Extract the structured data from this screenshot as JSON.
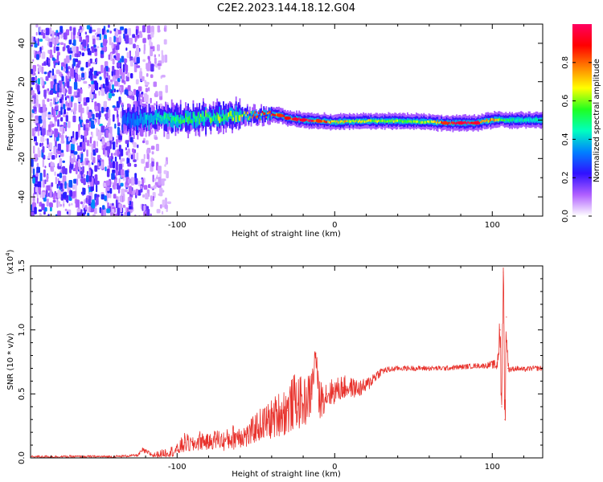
{
  "title": "C2E2.2023.144.18.12.G04",
  "chart_data": [
    {
      "type": "heatmap",
      "xlabel": "Height of straight line (km)",
      "ylabel": "Frequency (Hz)",
      "xlim": [
        -193,
        132
      ],
      "ylim": [
        -50,
        50
      ],
      "xticks": [
        -100,
        0,
        100
      ],
      "yticks": [
        -40,
        -20,
        0,
        20,
        40
      ],
      "colorbar": {
        "label": "Normalized spectral amplitude",
        "range": [
          0,
          1
        ],
        "ticks": [
          "0.0",
          "0.2",
          "0.4",
          "0.6",
          "0.8"
        ],
        "tick_values": [
          0,
          0.2,
          0.4,
          0.6,
          0.8
        ],
        "colors": [
          "#ffffff",
          "#b060ff",
          "#3010ff",
          "#0080ff",
          "#00ffc0",
          "#20ff20",
          "#ffff00",
          "#ff8000",
          "#ff0000",
          "#ff0060"
        ]
      },
      "ridge": {
        "x": [
          -130,
          -110,
          -100,
          -80,
          -60,
          -50,
          -40,
          -35,
          -30,
          -25,
          -20,
          -10,
          0,
          20,
          40,
          60,
          70,
          80,
          90,
          95,
          100,
          105,
          108,
          115,
          132
        ],
        "freq": [
          0,
          1,
          0.5,
          1.5,
          2.5,
          2,
          3,
          2.5,
          1,
          0.5,
          0,
          -0.5,
          -1,
          -0.5,
          -0.5,
          -1,
          -1.5,
          -1.5,
          -1.5,
          -0.5,
          0,
          0.5,
          0,
          0,
          0
        ],
        "amplitude": [
          0.3,
          0.45,
          0.5,
          0.55,
          0.6,
          0.75,
          0.8,
          0.85,
          0.9,
          0.95,
          0.95,
          0.85,
          0.7,
          0.65,
          0.6,
          0.6,
          0.85,
          0.95,
          0.95,
          0.7,
          0.8,
          0.6,
          0.5,
          0.45,
          0.45
        ]
      },
      "noise_region": {
        "x_range": [
          -193,
          -110
        ],
        "amplitude": 0.25
      }
    },
    {
      "type": "line",
      "xlabel": "Height of straight line (km)",
      "ylabel": "SNR (10 * v/v)",
      "scale_label": "(x10",
      "scale_exponent": "4",
      "scale_suffix": ")",
      "xlim": [
        -193,
        132
      ],
      "ylim": [
        0,
        1.5
      ],
      "xticks": [
        -100,
        0,
        100
      ],
      "yticks": [
        0,
        0.5,
        1.0,
        1.5
      ],
      "ytick_labels": [
        "0.0",
        "0.5",
        "1.0",
        "1.5"
      ],
      "color": "#e8322c",
      "series": [
        {
          "x": [
            -193,
            -170,
            -140,
            -125,
            -122,
            -115,
            -100,
            -95,
            -90,
            -85,
            -80,
            -75,
            -70,
            -65,
            -60,
            -55,
            -50,
            -45,
            -40,
            -35,
            -30,
            -25,
            -20,
            -15,
            -12,
            -10,
            -5,
            0,
            5,
            10,
            15,
            20,
            25,
            30,
            40,
            50,
            60,
            70,
            80,
            90,
            95,
            100,
            103,
            105,
            106,
            107,
            108,
            109,
            110,
            112,
            115,
            120,
            125,
            132
          ],
          "y": [
            0.01,
            0.01,
            0.01,
            0.02,
            0.06,
            0.02,
            0.06,
            0.12,
            0.1,
            0.14,
            0.12,
            0.15,
            0.13,
            0.16,
            0.18,
            0.17,
            0.24,
            0.27,
            0.3,
            0.35,
            0.37,
            0.45,
            0.42,
            0.5,
            0.82,
            0.45,
            0.5,
            0.52,
            0.55,
            0.55,
            0.54,
            0.56,
            0.63,
            0.68,
            0.7,
            0.7,
            0.7,
            0.7,
            0.71,
            0.72,
            0.72,
            0.73,
            0.72,
            1.0,
            0.4,
            1.45,
            0.3,
            1.1,
            0.7,
            0.69,
            0.7,
            0.69,
            0.7,
            0.7
          ],
          "noise": [
            0.01,
            0.01,
            0.01,
            0.01,
            0.02,
            0.02,
            0.05,
            0.08,
            0.06,
            0.08,
            0.06,
            0.08,
            0.08,
            0.1,
            0.1,
            0.1,
            0.12,
            0.14,
            0.16,
            0.18,
            0.2,
            0.22,
            0.2,
            0.18,
            0.1,
            0.16,
            0.12,
            0.1,
            0.1,
            0.08,
            0.07,
            0.06,
            0.05,
            0.03,
            0.02,
            0.02,
            0.02,
            0.02,
            0.02,
            0.02,
            0.02,
            0.03,
            0.05,
            0.2,
            0.3,
            0.2,
            0.3,
            0.2,
            0.05,
            0.02,
            0.02,
            0.02,
            0.02,
            0.02
          ]
        }
      ]
    }
  ]
}
